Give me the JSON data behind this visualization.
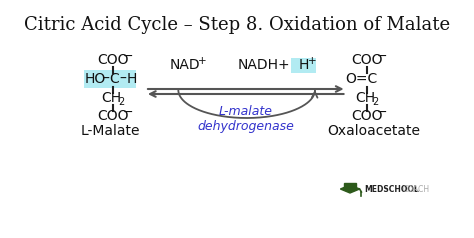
{
  "title": "Citric Acid Cycle – Step 8. Oxidation of Malate",
  "bg_color": "#ffffff",
  "title_fontsize": 13,
  "title_font": "serif",
  "highlight_color": "#b2ebf2",
  "arrow_color": "#555555",
  "enzyme_color": "#3333cc",
  "text_color": "#111111",
  "lmalate_label": "L-Malate",
  "oxaloacetate_label": "Oxaloacetate",
  "enzyme_label": "L-malate\ndehydrogenase",
  "medschoolcoach_bold": "MEDSCHOOL",
  "medschoolcoach_light": "COACH"
}
